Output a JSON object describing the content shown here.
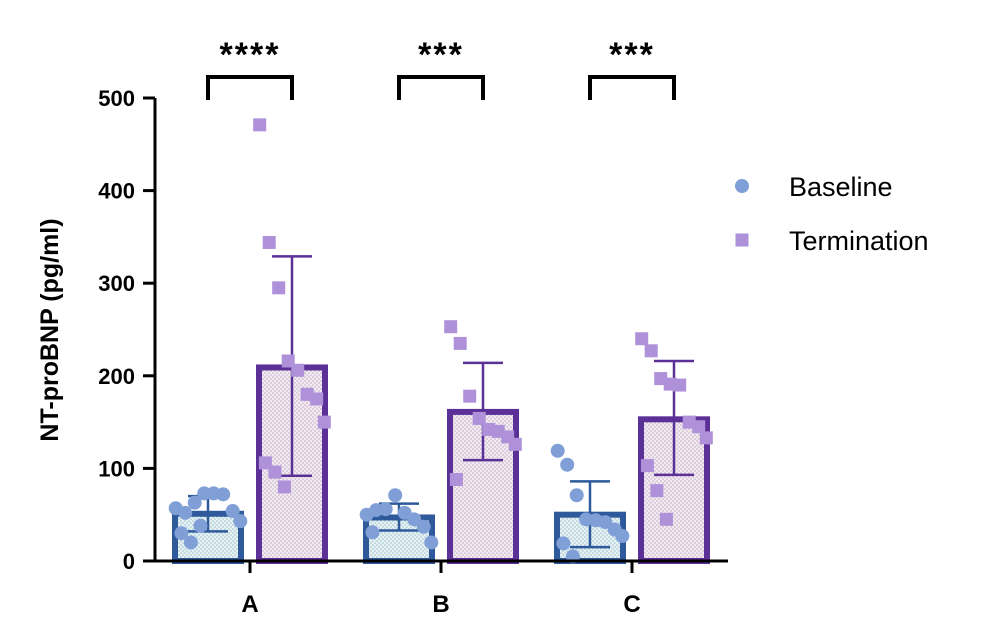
{
  "chart_data": {
    "type": "bar",
    "ylabel": "NT-proBNP (pg/ml)",
    "xlabel": "",
    "ylim": [
      0,
      500
    ],
    "yticks": [
      0,
      100,
      200,
      300,
      400,
      500
    ],
    "categories": [
      "A",
      "B",
      "C"
    ],
    "legend_position": "right",
    "series": [
      {
        "name": "Baseline",
        "marker": "circle",
        "color": "#2e5a9c",
        "point_color": "#7f9fd6",
        "fill": "#dceaf0",
        "values": [
          51,
          47,
          50
        ],
        "error": [
          {
            "low": 32,
            "high": 70
          },
          {
            "low": 33,
            "high": 62
          },
          {
            "low": 15,
            "high": 86
          }
        ],
        "points": [
          [
            57,
            52,
            63,
            73,
            73,
            72,
            54,
            43,
            30,
            20,
            38
          ],
          [
            50,
            55,
            56,
            71,
            52,
            45,
            37,
            20,
            31
          ],
          [
            119,
            104,
            71,
            45,
            44,
            42,
            34,
            27,
            19,
            5
          ]
        ]
      },
      {
        "name": "Termination",
        "marker": "square",
        "color": "#5b3197",
        "point_color": "#ae91d8",
        "fill": "#ece3ec",
        "values": [
          209,
          161,
          153
        ],
        "error": [
          {
            "low": 92,
            "high": 329
          },
          {
            "low": 109,
            "high": 214
          },
          {
            "low": 93,
            "high": 216
          }
        ],
        "points": [
          [
            471,
            344,
            295,
            216,
            206,
            180,
            175,
            150,
            106,
            96,
            80
          ],
          [
            253,
            235,
            178,
            154,
            142,
            140,
            134,
            126,
            88
          ],
          [
            240,
            227,
            197,
            191,
            190,
            150,
            145,
            133,
            103,
            76,
            45
          ]
        ]
      }
    ],
    "significance": [
      "****",
      "***",
      "***"
    ]
  }
}
